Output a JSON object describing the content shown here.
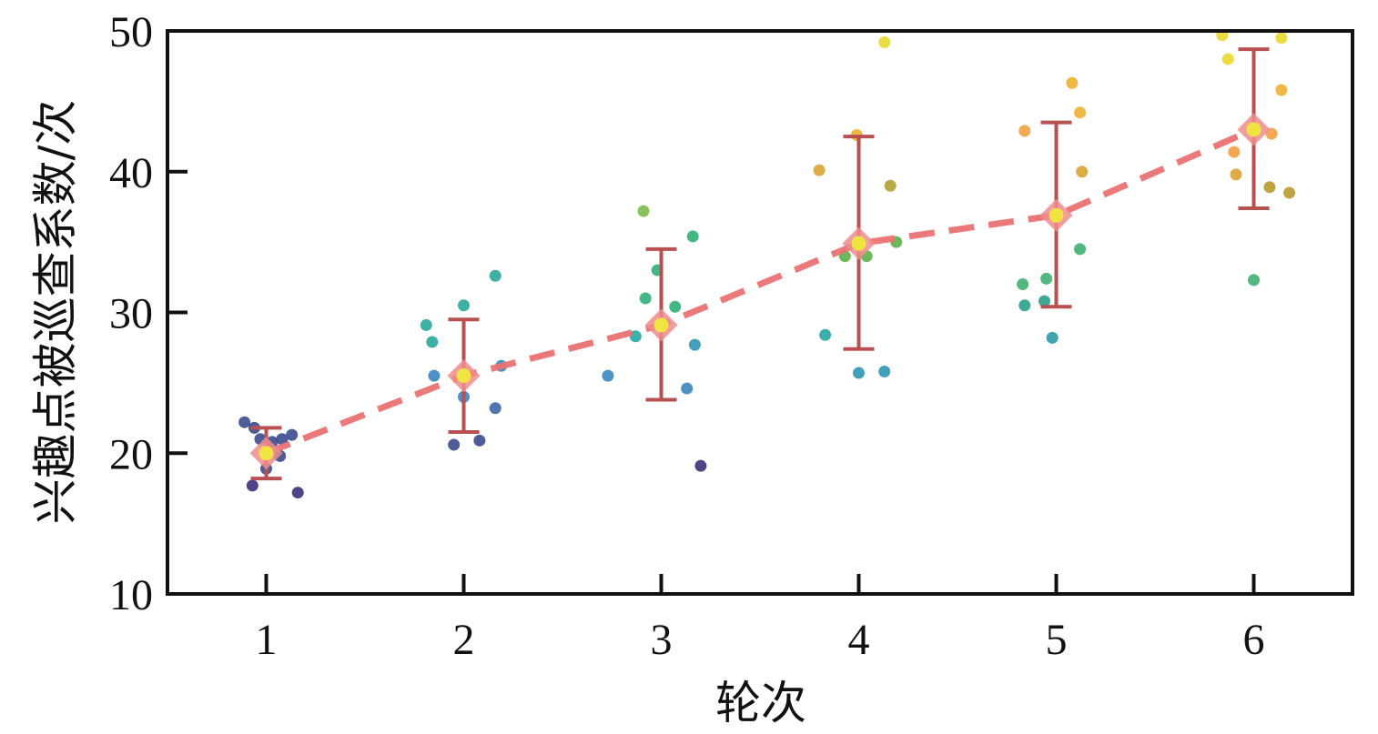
{
  "chart_data": {
    "type": "scatter",
    "title": "",
    "xlabel": "轮次",
    "ylabel": "兴趣点被巡查系数/次",
    "xlim": [
      0.5,
      6.5
    ],
    "ylim": [
      10,
      50
    ],
    "x_ticks": [
      "1",
      "2",
      "3",
      "4",
      "5",
      "6"
    ],
    "y_ticks": [
      "10",
      "20",
      "30",
      "40",
      "50"
    ],
    "grid": false,
    "legend": "none",
    "colors": {
      "trend": "#ea7272",
      "errorbar": "#b8504f",
      "mean_marker": "#f0e442",
      "diamond": "#f08c8c",
      "axis": "#111111"
    },
    "points": [
      {
        "x": 0.89,
        "y": 22.2,
        "color": "#3b4a8c"
      },
      {
        "x": 0.94,
        "y": 21.8,
        "color": "#3b4a8c"
      },
      {
        "x": 0.97,
        "y": 21.0,
        "color": "#3b4a8c"
      },
      {
        "x": 1.03,
        "y": 20.8,
        "color": "#3b4a8c"
      },
      {
        "x": 1.08,
        "y": 21.0,
        "color": "#3b4a8c"
      },
      {
        "x": 1.13,
        "y": 21.3,
        "color": "#3b4a8c"
      },
      {
        "x": 1.07,
        "y": 19.8,
        "color": "#3b4a8c"
      },
      {
        "x": 1.0,
        "y": 18.9,
        "color": "#3b4a8c"
      },
      {
        "x": 0.93,
        "y": 17.7,
        "color": "#3e2f7a"
      },
      {
        "x": 1.16,
        "y": 17.2,
        "color": "#3e2f7a"
      },
      {
        "x": 1.81,
        "y": 29.1,
        "color": "#2aa89a"
      },
      {
        "x": 1.84,
        "y": 27.9,
        "color": "#2aa89a"
      },
      {
        "x": 2.0,
        "y": 30.5,
        "color": "#2aa89a"
      },
      {
        "x": 2.16,
        "y": 32.6,
        "color": "#2aa89a"
      },
      {
        "x": 1.85,
        "y": 25.5,
        "color": "#3a86c0"
      },
      {
        "x": 2.0,
        "y": 24.0,
        "color": "#3a86c0"
      },
      {
        "x": 2.19,
        "y": 26.2,
        "color": "#3a86c0"
      },
      {
        "x": 2.16,
        "y": 23.2,
        "color": "#3d66a8"
      },
      {
        "x": 1.95,
        "y": 20.6,
        "color": "#3b4a8c"
      },
      {
        "x": 2.08,
        "y": 20.9,
        "color": "#3b4a8c"
      },
      {
        "x": 2.91,
        "y": 37.2,
        "color": "#7bbb4a"
      },
      {
        "x": 2.98,
        "y": 33.0,
        "color": "#2fb07a"
      },
      {
        "x": 3.16,
        "y": 35.4,
        "color": "#2fb07a"
      },
      {
        "x": 2.92,
        "y": 31.0,
        "color": "#2fb07a"
      },
      {
        "x": 3.07,
        "y": 30.4,
        "color": "#2fb07a"
      },
      {
        "x": 2.87,
        "y": 28.3,
        "color": "#26a6a0"
      },
      {
        "x": 3.17,
        "y": 27.7,
        "color": "#2f96b0"
      },
      {
        "x": 2.73,
        "y": 25.5,
        "color": "#3a86c0"
      },
      {
        "x": 3.13,
        "y": 24.6,
        "color": "#3a86c0"
      },
      {
        "x": 3.2,
        "y": 19.1,
        "color": "#3e2f7a"
      },
      {
        "x": 4.13,
        "y": 49.2,
        "color": "#e8d82c"
      },
      {
        "x": 3.99,
        "y": 42.6,
        "color": "#f0b030"
      },
      {
        "x": 3.8,
        "y": 40.1,
        "color": "#d8a432"
      },
      {
        "x": 4.16,
        "y": 39.0,
        "color": "#b0a030"
      },
      {
        "x": 4.19,
        "y": 35.0,
        "color": "#5cb048"
      },
      {
        "x": 3.93,
        "y": 34.0,
        "color": "#5cb048"
      },
      {
        "x": 4.04,
        "y": 34.0,
        "color": "#5cb048"
      },
      {
        "x": 3.83,
        "y": 28.4,
        "color": "#26a6a0"
      },
      {
        "x": 4.0,
        "y": 25.7,
        "color": "#2f96b0"
      },
      {
        "x": 4.13,
        "y": 25.8,
        "color": "#2f96b0"
      },
      {
        "x": 5.08,
        "y": 46.3,
        "color": "#f0b030"
      },
      {
        "x": 5.12,
        "y": 44.2,
        "color": "#f0b030"
      },
      {
        "x": 4.84,
        "y": 42.9,
        "color": "#f0a040"
      },
      {
        "x": 5.13,
        "y": 40.0,
        "color": "#d8a432"
      },
      {
        "x": 5.12,
        "y": 34.5,
        "color": "#3fb070"
      },
      {
        "x": 4.83,
        "y": 32.0,
        "color": "#3fb070"
      },
      {
        "x": 4.95,
        "y": 32.4,
        "color": "#3fb070"
      },
      {
        "x": 4.84,
        "y": 30.5,
        "color": "#2aa08a"
      },
      {
        "x": 4.94,
        "y": 30.8,
        "color": "#2aa08a"
      },
      {
        "x": 4.98,
        "y": 28.2,
        "color": "#2a9aa4"
      },
      {
        "x": 5.84,
        "y": 49.7,
        "color": "#e8d82c"
      },
      {
        "x": 6.14,
        "y": 49.5,
        "color": "#e8d82c"
      },
      {
        "x": 5.87,
        "y": 48.0,
        "color": "#e8d82c"
      },
      {
        "x": 6.14,
        "y": 45.8,
        "color": "#f0b030"
      },
      {
        "x": 6.09,
        "y": 42.7,
        "color": "#f0a040"
      },
      {
        "x": 5.9,
        "y": 41.4,
        "color": "#f0a040"
      },
      {
        "x": 5.91,
        "y": 39.8,
        "color": "#d8a432"
      },
      {
        "x": 6.08,
        "y": 38.9,
        "color": "#b89a30"
      },
      {
        "x": 6.18,
        "y": 38.5,
        "color": "#b89a30"
      },
      {
        "x": 6.0,
        "y": 32.3,
        "color": "#3fb070"
      }
    ],
    "means": [
      {
        "x": 1,
        "y": 20.0,
        "yerr_low": 18.2,
        "yerr_high": 21.8
      },
      {
        "x": 2,
        "y": 25.5,
        "yerr_low": 21.5,
        "yerr_high": 29.5
      },
      {
        "x": 3,
        "y": 29.1,
        "yerr_low": 23.8,
        "yerr_high": 34.5
      },
      {
        "x": 4,
        "y": 34.9,
        "yerr_low": 27.4,
        "yerr_high": 42.5
      },
      {
        "x": 5,
        "y": 36.9,
        "yerr_low": 30.4,
        "yerr_high": 43.5
      },
      {
        "x": 6,
        "y": 43.0,
        "yerr_low": 37.4,
        "yerr_high": 48.7
      }
    ]
  }
}
